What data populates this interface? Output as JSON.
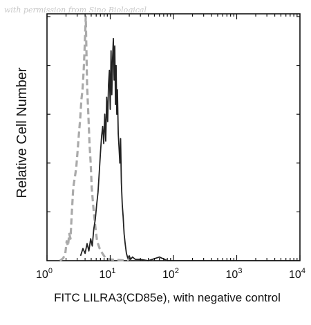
{
  "watermark": "with permission from Sino Biological",
  "chart_data": {
    "type": "line",
    "title": "",
    "xlabel": "FITC LILRA3(CD85e), with negative control",
    "ylabel": "Relative Cell Number",
    "x_scale": "log",
    "xlim": [
      1,
      10000
    ],
    "ylim": [
      0,
      100
    ],
    "x_ticks": [
      {
        "value": 1,
        "base": "10",
        "exp": "0"
      },
      {
        "value": 10,
        "base": "10",
        "exp": "1"
      },
      {
        "value": 100,
        "base": "10",
        "exp": "2"
      },
      {
        "value": 1000,
        "base": "10",
        "exp": "3"
      },
      {
        "value": 10000,
        "base": "10",
        "exp": "4"
      }
    ],
    "grid": false,
    "legend": "none",
    "series": [
      {
        "style": "dashed",
        "color": "#aaaaaa",
        "x": [
          1.6,
          1.8,
          1.95,
          2.05,
          2.15,
          2.25,
          2.35,
          2.45,
          2.6,
          2.75,
          2.9,
          3.05,
          3.2,
          3.35,
          3.5,
          3.65,
          3.8,
          3.95,
          4.1,
          4.3,
          4.5,
          4.7,
          4.9,
          5.1,
          5.4,
          5.8,
          6.2,
          6.8,
          7.5,
          8.5,
          10,
          20
        ],
        "y": [
          0,
          1,
          3,
          8,
          6,
          11,
          9,
          18,
          30,
          34,
          38,
          45,
          52,
          58,
          66,
          70,
          78,
          88,
          100,
          72,
          60,
          48,
          40,
          30,
          22,
          14,
          8,
          5,
          3,
          1,
          0.5,
          0
        ]
      },
      {
        "style": "solid",
        "color": "#222222",
        "x": [
          3.4,
          3.7,
          4.0,
          4.3,
          4.6,
          4.9,
          5.2,
          5.5,
          5.8,
          6.1,
          6.4,
          6.7,
          7.0,
          7.3,
          7.6,
          7.9,
          8.2,
          8.5,
          8.8,
          9.1,
          9.4,
          9.7,
          10.0,
          10.3,
          10.6,
          10.9,
          11.2,
          11.5,
          11.8,
          12.1,
          12.4,
          12.7,
          13.0,
          13.4,
          13.8,
          14.2,
          14.6,
          15.0,
          15.5,
          16.0,
          16.6,
          17.2,
          18.0,
          19.0,
          20.0,
          21.0,
          22.5,
          25.0,
          30.0,
          40.0,
          60.0,
          80.0,
          10000
        ],
        "y": [
          2,
          5,
          3,
          7,
          4,
          9,
          6,
          13,
          17,
          23,
          28,
          36,
          44,
          51,
          55,
          48,
          60,
          49,
          67,
          57,
          72,
          78,
          62,
          86,
          68,
          83,
          91,
          74,
          88,
          64,
          80,
          60,
          70,
          52,
          46,
          40,
          50,
          32,
          23,
          18,
          11,
          7,
          3,
          1,
          2,
          0.5,
          1.5,
          0.5,
          0.5,
          0,
          1.5,
          0,
          0
        ]
      }
    ]
  }
}
